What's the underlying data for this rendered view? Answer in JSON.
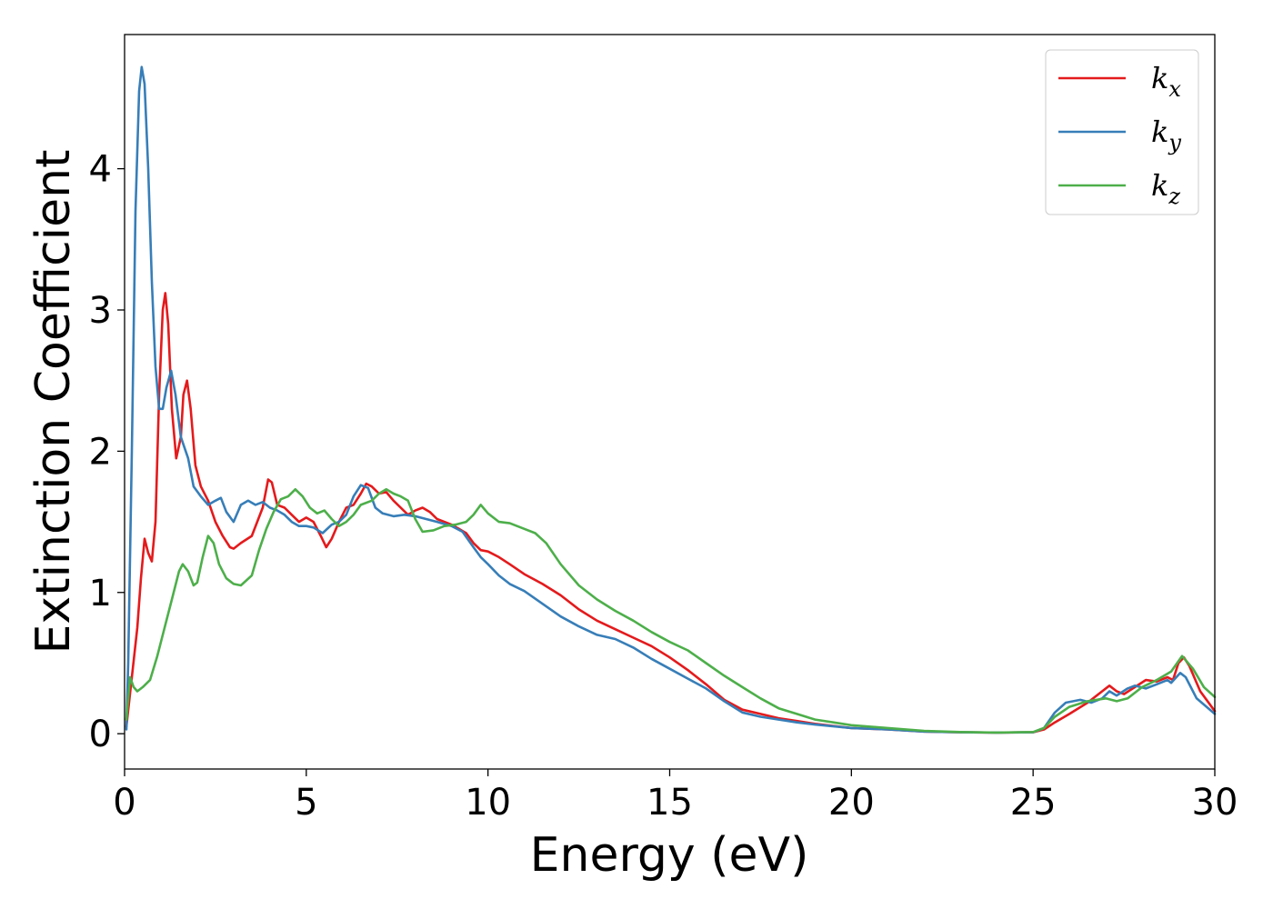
{
  "chart_data": {
    "type": "line",
    "title": "",
    "xlabel": "Energy (eV)",
    "ylabel": "Extinction Coefficient",
    "xlim": [
      0,
      30
    ],
    "ylim": [
      -0.25,
      4.95
    ],
    "xticks": [
      0,
      5,
      10,
      15,
      20,
      25,
      30
    ],
    "yticks": [
      0,
      1,
      2,
      3,
      4
    ],
    "grid": false,
    "legend_position": "top-right",
    "series": [
      {
        "name": "k_x",
        "legend_base": "k",
        "legend_sub": "x",
        "color": "#e41a1c",
        "points": [
          [
            0.05,
            0.05
          ],
          [
            0.2,
            0.4
          ],
          [
            0.35,
            0.75
          ],
          [
            0.45,
            1.1
          ],
          [
            0.55,
            1.38
          ],
          [
            0.65,
            1.28
          ],
          [
            0.75,
            1.22
          ],
          [
            0.85,
            1.5
          ],
          [
            0.95,
            2.4
          ],
          [
            1.05,
            3.0
          ],
          [
            1.12,
            3.12
          ],
          [
            1.2,
            2.9
          ],
          [
            1.3,
            2.3
          ],
          [
            1.42,
            1.95
          ],
          [
            1.55,
            2.1
          ],
          [
            1.62,
            2.4
          ],
          [
            1.72,
            2.5
          ],
          [
            1.82,
            2.3
          ],
          [
            1.95,
            1.9
          ],
          [
            2.1,
            1.75
          ],
          [
            2.3,
            1.65
          ],
          [
            2.5,
            1.5
          ],
          [
            2.7,
            1.4
          ],
          [
            2.9,
            1.32
          ],
          [
            3.0,
            1.31
          ],
          [
            3.2,
            1.35
          ],
          [
            3.5,
            1.4
          ],
          [
            3.8,
            1.6
          ],
          [
            3.95,
            1.8
          ],
          [
            4.05,
            1.78
          ],
          [
            4.2,
            1.62
          ],
          [
            4.4,
            1.6
          ],
          [
            4.6,
            1.55
          ],
          [
            4.8,
            1.5
          ],
          [
            5.0,
            1.53
          ],
          [
            5.2,
            1.5
          ],
          [
            5.4,
            1.4
          ],
          [
            5.55,
            1.32
          ],
          [
            5.7,
            1.38
          ],
          [
            5.9,
            1.5
          ],
          [
            6.1,
            1.6
          ],
          [
            6.3,
            1.62
          ],
          [
            6.5,
            1.7
          ],
          [
            6.65,
            1.77
          ],
          [
            6.8,
            1.75
          ],
          [
            7.0,
            1.7
          ],
          [
            7.2,
            1.71
          ],
          [
            7.4,
            1.65
          ],
          [
            7.6,
            1.6
          ],
          [
            7.8,
            1.55
          ],
          [
            8.0,
            1.58
          ],
          [
            8.2,
            1.6
          ],
          [
            8.4,
            1.57
          ],
          [
            8.6,
            1.52
          ],
          [
            8.8,
            1.5
          ],
          [
            9.0,
            1.48
          ],
          [
            9.2,
            1.45
          ],
          [
            9.4,
            1.42
          ],
          [
            9.6,
            1.35
          ],
          [
            9.8,
            1.3
          ],
          [
            10,
            1.29
          ],
          [
            10.3,
            1.25
          ],
          [
            10.6,
            1.2
          ],
          [
            11,
            1.13
          ],
          [
            11.5,
            1.06
          ],
          [
            12,
            0.98
          ],
          [
            12.5,
            0.88
          ],
          [
            13,
            0.8
          ],
          [
            13.5,
            0.74
          ],
          [
            14,
            0.68
          ],
          [
            14.5,
            0.62
          ],
          [
            15,
            0.54
          ],
          [
            15.5,
            0.45
          ],
          [
            16,
            0.35
          ],
          [
            16.5,
            0.24
          ],
          [
            17,
            0.17
          ],
          [
            17.5,
            0.14
          ],
          [
            18,
            0.11
          ],
          [
            18.5,
            0.09
          ],
          [
            19,
            0.07
          ],
          [
            20,
            0.04
          ],
          [
            21,
            0.03
          ],
          [
            22,
            0.015
          ],
          [
            23,
            0.01
          ],
          [
            24,
            0.008
          ],
          [
            25,
            0.01
          ],
          [
            25.3,
            0.03
          ],
          [
            25.6,
            0.08
          ],
          [
            26,
            0.14
          ],
          [
            26.5,
            0.22
          ],
          [
            26.9,
            0.3
          ],
          [
            27.1,
            0.34
          ],
          [
            27.3,
            0.3
          ],
          [
            27.5,
            0.28
          ],
          [
            27.8,
            0.33
          ],
          [
            28.1,
            0.38
          ],
          [
            28.4,
            0.37
          ],
          [
            28.7,
            0.4
          ],
          [
            28.85,
            0.38
          ],
          [
            29.0,
            0.5
          ],
          [
            29.15,
            0.54
          ],
          [
            29.3,
            0.48
          ],
          [
            29.6,
            0.3
          ],
          [
            30,
            0.16
          ]
        ]
      },
      {
        "name": "k_y",
        "legend_base": "k",
        "legend_sub": "y",
        "color": "#377eb8",
        "points": [
          [
            0.05,
            0.03
          ],
          [
            0.1,
            0.5
          ],
          [
            0.2,
            2.0
          ],
          [
            0.3,
            3.7
          ],
          [
            0.4,
            4.55
          ],
          [
            0.47,
            4.72
          ],
          [
            0.55,
            4.6
          ],
          [
            0.65,
            4.0
          ],
          [
            0.75,
            3.2
          ],
          [
            0.85,
            2.6
          ],
          [
            0.95,
            2.3
          ],
          [
            1.05,
            2.3
          ],
          [
            1.15,
            2.45
          ],
          [
            1.28,
            2.57
          ],
          [
            1.4,
            2.4
          ],
          [
            1.55,
            2.1
          ],
          [
            1.75,
            1.95
          ],
          [
            1.9,
            1.75
          ],
          [
            2.1,
            1.68
          ],
          [
            2.3,
            1.62
          ],
          [
            2.5,
            1.65
          ],
          [
            2.65,
            1.67
          ],
          [
            2.8,
            1.57
          ],
          [
            3.0,
            1.5
          ],
          [
            3.2,
            1.62
          ],
          [
            3.4,
            1.65
          ],
          [
            3.6,
            1.62
          ],
          [
            3.8,
            1.64
          ],
          [
            4.0,
            1.6
          ],
          [
            4.2,
            1.58
          ],
          [
            4.4,
            1.55
          ],
          [
            4.6,
            1.5
          ],
          [
            4.8,
            1.47
          ],
          [
            5.0,
            1.47
          ],
          [
            5.2,
            1.46
          ],
          [
            5.45,
            1.42
          ],
          [
            5.7,
            1.48
          ],
          [
            5.9,
            1.5
          ],
          [
            6.1,
            1.55
          ],
          [
            6.3,
            1.68
          ],
          [
            6.5,
            1.76
          ],
          [
            6.7,
            1.74
          ],
          [
            6.9,
            1.6
          ],
          [
            7.1,
            1.56
          ],
          [
            7.4,
            1.54
          ],
          [
            7.7,
            1.55
          ],
          [
            8.0,
            1.54
          ],
          [
            8.3,
            1.52
          ],
          [
            8.6,
            1.5
          ],
          [
            9.0,
            1.47
          ],
          [
            9.3,
            1.43
          ],
          [
            9.6,
            1.32
          ],
          [
            9.8,
            1.25
          ],
          [
            10,
            1.2
          ],
          [
            10.3,
            1.12
          ],
          [
            10.6,
            1.06
          ],
          [
            11,
            1.01
          ],
          [
            11.5,
            0.92
          ],
          [
            12,
            0.83
          ],
          [
            12.5,
            0.76
          ],
          [
            13,
            0.7
          ],
          [
            13.5,
            0.67
          ],
          [
            14,
            0.61
          ],
          [
            14.5,
            0.53
          ],
          [
            15,
            0.46
          ],
          [
            15.5,
            0.39
          ],
          [
            16,
            0.32
          ],
          [
            16.5,
            0.23
          ],
          [
            17,
            0.15
          ],
          [
            17.5,
            0.12
          ],
          [
            18,
            0.1
          ],
          [
            18.5,
            0.08
          ],
          [
            19,
            0.065
          ],
          [
            20,
            0.04
          ],
          [
            21,
            0.03
          ],
          [
            22,
            0.015
          ],
          [
            23,
            0.01
          ],
          [
            24,
            0.008
          ],
          [
            25,
            0.01
          ],
          [
            25.3,
            0.04
          ],
          [
            25.6,
            0.15
          ],
          [
            25.9,
            0.22
          ],
          [
            26.3,
            0.24
          ],
          [
            26.6,
            0.22
          ],
          [
            26.9,
            0.25
          ],
          [
            27.1,
            0.3
          ],
          [
            27.3,
            0.27
          ],
          [
            27.6,
            0.32
          ],
          [
            27.8,
            0.34
          ],
          [
            28.1,
            0.32
          ],
          [
            28.4,
            0.35
          ],
          [
            28.7,
            0.38
          ],
          [
            28.8,
            0.36
          ],
          [
            29.05,
            0.43
          ],
          [
            29.2,
            0.4
          ],
          [
            29.5,
            0.25
          ],
          [
            30,
            0.14
          ]
        ]
      },
      {
        "name": "k_z",
        "legend_base": "k",
        "legend_sub": "z",
        "color": "#4daf4a",
        "points": [
          [
            0.05,
            0.1
          ],
          [
            0.15,
            0.4
          ],
          [
            0.25,
            0.33
          ],
          [
            0.35,
            0.3
          ],
          [
            0.5,
            0.33
          ],
          [
            0.7,
            0.38
          ],
          [
            0.9,
            0.55
          ],
          [
            1.1,
            0.75
          ],
          [
            1.3,
            0.95
          ],
          [
            1.5,
            1.15
          ],
          [
            1.6,
            1.2
          ],
          [
            1.75,
            1.15
          ],
          [
            1.9,
            1.05
          ],
          [
            2.0,
            1.07
          ],
          [
            2.15,
            1.25
          ],
          [
            2.3,
            1.4
          ],
          [
            2.45,
            1.35
          ],
          [
            2.6,
            1.2
          ],
          [
            2.8,
            1.1
          ],
          [
            3.0,
            1.06
          ],
          [
            3.2,
            1.05
          ],
          [
            3.5,
            1.12
          ],
          [
            3.7,
            1.3
          ],
          [
            3.9,
            1.45
          ],
          [
            4.1,
            1.57
          ],
          [
            4.3,
            1.66
          ],
          [
            4.5,
            1.68
          ],
          [
            4.7,
            1.73
          ],
          [
            4.9,
            1.68
          ],
          [
            5.1,
            1.6
          ],
          [
            5.3,
            1.56
          ],
          [
            5.5,
            1.58
          ],
          [
            5.7,
            1.52
          ],
          [
            5.9,
            1.47
          ],
          [
            6.1,
            1.5
          ],
          [
            6.3,
            1.55
          ],
          [
            6.5,
            1.62
          ],
          [
            6.8,
            1.65
          ],
          [
            7.0,
            1.7
          ],
          [
            7.2,
            1.73
          ],
          [
            7.4,
            1.7
          ],
          [
            7.6,
            1.68
          ],
          [
            7.8,
            1.65
          ],
          [
            8.0,
            1.52
          ],
          [
            8.2,
            1.43
          ],
          [
            8.5,
            1.44
          ],
          [
            8.8,
            1.47
          ],
          [
            9.1,
            1.48
          ],
          [
            9.4,
            1.5
          ],
          [
            9.6,
            1.55
          ],
          [
            9.8,
            1.62
          ],
          [
            10.0,
            1.56
          ],
          [
            10.3,
            1.5
          ],
          [
            10.6,
            1.49
          ],
          [
            11.0,
            1.45
          ],
          [
            11.3,
            1.42
          ],
          [
            11.6,
            1.35
          ],
          [
            12.0,
            1.2
          ],
          [
            12.5,
            1.05
          ],
          [
            13.0,
            0.95
          ],
          [
            13.5,
            0.87
          ],
          [
            14,
            0.8
          ],
          [
            14.5,
            0.72
          ],
          [
            15,
            0.65
          ],
          [
            15.5,
            0.59
          ],
          [
            16,
            0.5
          ],
          [
            16.5,
            0.41
          ],
          [
            17,
            0.33
          ],
          [
            17.5,
            0.25
          ],
          [
            18,
            0.18
          ],
          [
            18.5,
            0.14
          ],
          [
            19,
            0.1
          ],
          [
            19.5,
            0.08
          ],
          [
            20,
            0.06
          ],
          [
            21,
            0.04
          ],
          [
            22,
            0.02
          ],
          [
            23,
            0.012
          ],
          [
            24,
            0.008
          ],
          [
            25,
            0.012
          ],
          [
            25.3,
            0.04
          ],
          [
            25.6,
            0.12
          ],
          [
            26.0,
            0.19
          ],
          [
            26.5,
            0.23
          ],
          [
            27.0,
            0.25
          ],
          [
            27.3,
            0.23
          ],
          [
            27.6,
            0.25
          ],
          [
            28.0,
            0.33
          ],
          [
            28.4,
            0.38
          ],
          [
            28.8,
            0.44
          ],
          [
            29.1,
            0.55
          ],
          [
            29.4,
            0.46
          ],
          [
            29.7,
            0.33
          ],
          [
            30,
            0.26
          ]
        ]
      }
    ]
  }
}
